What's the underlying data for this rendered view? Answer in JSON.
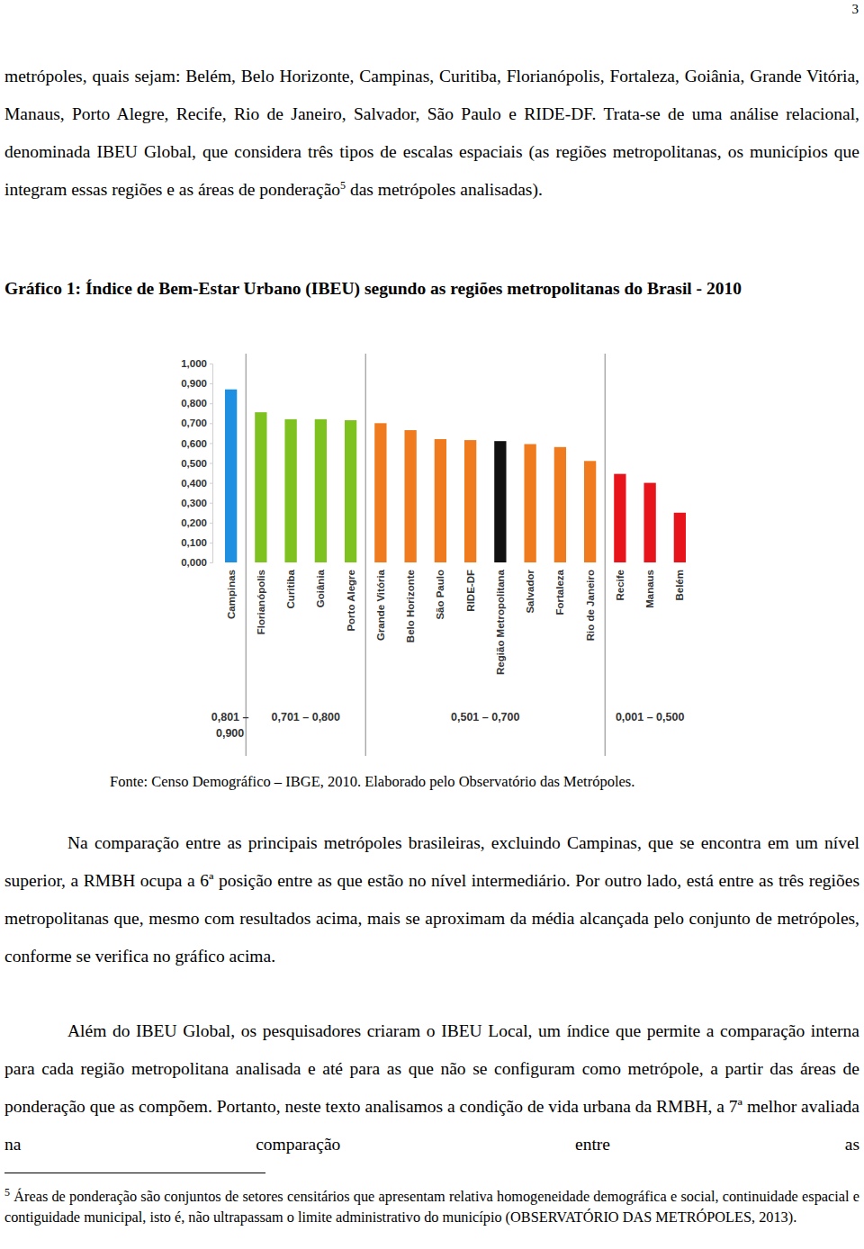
{
  "page_number": "3",
  "paragraph_1": {
    "text_before": "metrópoles, quais sejam: Belém, Belo Horizonte, Campinas, Curitiba, Florianópolis, Fortaleza, Goiânia, Grande Vitória, Manaus, Porto Alegre, Recife, Rio de Janeiro, Salvador, São Paulo e RIDE-DF. Trata-se de uma análise relacional, denominada IBEU Global, que considera três tipos de escalas espaciais (as regiões metropolitanas, os municípios que integram essas regiões e as áreas de ponderação",
    "footnote_ref": "5",
    "text_after": " das metrópoles analisadas)."
  },
  "chart_data": {
    "type": "bar",
    "title": "Gráfico 1: Índice de Bem-Estar Urbano (IBEU) segundo as regiões metropolitanas do Brasil - 2010",
    "categories": [
      "Campinas",
      "Florianópolis",
      "Curitiba",
      "Goiânia",
      "Porto Alegre",
      "Grande Vitória",
      "Belo Horizonte",
      "São Paulo",
      "RIDE-DF",
      "Região Metropolitana",
      "Salvador",
      "Fortaleza",
      "Rio de Janeiro",
      "Recife",
      "Manaus",
      "Belém"
    ],
    "values": [
      0.87,
      0.755,
      0.72,
      0.72,
      0.715,
      0.7,
      0.665,
      0.62,
      0.615,
      0.61,
      0.595,
      0.58,
      0.51,
      0.445,
      0.4,
      0.25
    ],
    "colors": [
      "#1e8fe1",
      "#7ec21f",
      "#7ec21f",
      "#7ec21f",
      "#7ec21f",
      "#f07a1e",
      "#f07a1e",
      "#f07a1e",
      "#f07a1e",
      "#111111",
      "#f07a1e",
      "#f07a1e",
      "#f07a1e",
      "#e8141c",
      "#e8141c",
      "#e8141c"
    ],
    "ylim": [
      0,
      1
    ],
    "yticks": [
      {
        "value": 0,
        "label": "0,000"
      },
      {
        "value": 0.1,
        "label": "0,100"
      },
      {
        "value": 0.2,
        "label": "0,200"
      },
      {
        "value": 0.3,
        "label": "0,300"
      },
      {
        "value": 0.4,
        "label": "0,400"
      },
      {
        "value": 0.5,
        "label": "0,500"
      },
      {
        "value": 0.6,
        "label": "0,600"
      },
      {
        "value": 0.7,
        "label": "0,700"
      },
      {
        "value": 0.8,
        "label": "0,800"
      },
      {
        "value": 0.9,
        "label": "0,900"
      },
      {
        "value": 1,
        "label": "1,000"
      }
    ],
    "groups": [
      {
        "label": "0,801 – 0,900",
        "range": [
          0.801,
          0.9
        ]
      },
      {
        "label": "0,701 – 0,800",
        "range": [
          0.701,
          0.8
        ]
      },
      {
        "label": "0,501 – 0,700",
        "range": [
          0.501,
          0.7
        ]
      },
      {
        "label": "0,001 – 0,500",
        "range": [
          0.001,
          0.5
        ]
      }
    ]
  },
  "source": "Fonte: Censo Demográfico – IBGE, 2010. Elaborado pelo Observatório das Metrópoles.",
  "paragraphs": [
    "Na comparação entre as principais metrópoles brasileiras, excluindo Campinas, que se encontra em um nível superior, a RMBH ocupa a 6ª posição entre as que estão no nível intermediário. Por outro lado, está entre as três regiões metropolitanas que, mesmo com resultados acima, mais se aproximam da média alcançada pelo conjunto de metrópoles, conforme se verifica no gráfico acima.",
    "Além do IBEU Global, os pesquisadores criaram o IBEU Local, um índice que permite a comparação interna para cada região metropolitana analisada e até para as que não se configuram como metrópole, a partir das áreas de ponderação que as compõem. Portanto, neste texto analisamos a condição de vida urbana da RMBH, a 7ª melhor avaliada na comparação entre as"
  ],
  "footnote": {
    "number": "5",
    "text": " Áreas de ponderação são conjuntos de setores censitários que apresentam relativa homogeneidade demográfica e social, continuidade espacial e contiguidade municipal, isto é, não ultrapassam o limite administrativo do município (OBSERVATÓRIO DAS METRÓPOLES, 2013)."
  }
}
